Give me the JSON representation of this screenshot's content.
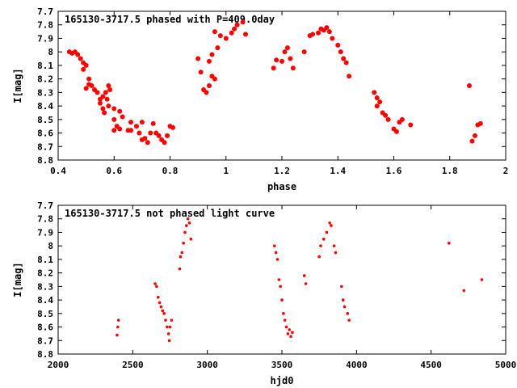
{
  "chart_data": [
    {
      "type": "scatter",
      "title": "165130-3717.5 phased with P=409.0day",
      "xlabel": "phase",
      "ylabel": "I[mag]",
      "xlim": [
        0.4,
        2.0
      ],
      "ylim": [
        7.7,
        8.8
      ],
      "y_inverted": true,
      "grid": false,
      "xticks": [
        "0.4",
        "0.6",
        "0.8",
        "1",
        "1.2",
        "1.4",
        "1.6",
        "1.8",
        "2"
      ],
      "yticks": [
        "7.7",
        "7.8",
        "7.9",
        "8",
        "8.1",
        "8.2",
        "8.3",
        "8.4",
        "8.5",
        "8.6",
        "8.7",
        "8.8"
      ],
      "marker_color": "#ff0000",
      "series": [
        {
          "points": [
            [
              0.44,
              8.0
            ],
            [
              0.45,
              8.01
            ],
            [
              0.46,
              8.0
            ],
            [
              0.47,
              8.02
            ],
            [
              0.48,
              8.05
            ],
            [
              0.49,
              8.08
            ],
            [
              0.5,
              8.1
            ],
            [
              0.49,
              8.13
            ],
            [
              0.51,
              8.2
            ],
            [
              0.52,
              8.25
            ],
            [
              0.5,
              8.27
            ],
            [
              0.53,
              8.28
            ],
            [
              0.51,
              8.24
            ],
            [
              0.54,
              8.3
            ],
            [
              0.55,
              8.35
            ],
            [
              0.56,
              8.33
            ],
            [
              0.57,
              8.3
            ],
            [
              0.58,
              8.25
            ],
            [
              0.585,
              8.28
            ],
            [
              0.575,
              8.35
            ],
            [
              0.55,
              8.38
            ],
            [
              0.56,
              8.42
            ],
            [
              0.565,
              8.45
            ],
            [
              0.58,
              8.4
            ],
            [
              0.6,
              8.42
            ],
            [
              0.62,
              8.44
            ],
            [
              0.63,
              8.48
            ],
            [
              0.6,
              8.5
            ],
            [
              0.61,
              8.55
            ],
            [
              0.62,
              8.57
            ],
            [
              0.65,
              8.58
            ],
            [
              0.66,
              8.52
            ],
            [
              0.68,
              8.55
            ],
            [
              0.7,
              8.52
            ],
            [
              0.69,
              8.6
            ],
            [
              0.7,
              8.65
            ],
            [
              0.72,
              8.67
            ],
            [
              0.71,
              8.64
            ],
            [
              0.73,
              8.6
            ],
            [
              0.74,
              8.53
            ],
            [
              0.75,
              8.6
            ],
            [
              0.76,
              8.62
            ],
            [
              0.77,
              8.65
            ],
            [
              0.78,
              8.67
            ],
            [
              0.79,
              8.62
            ],
            [
              0.8,
              8.55
            ],
            [
              0.81,
              8.56
            ],
            [
              0.6,
              8.58
            ],
            [
              0.66,
              8.58
            ],
            [
              0.9,
              8.05
            ],
            [
              0.91,
              8.15
            ],
            [
              0.92,
              8.28
            ],
            [
              0.93,
              8.3
            ],
            [
              0.94,
              8.25
            ],
            [
              0.95,
              8.18
            ],
            [
              0.96,
              8.2
            ],
            [
              0.94,
              8.07
            ],
            [
              0.95,
              8.02
            ],
            [
              0.97,
              7.97
            ],
            [
              0.96,
              7.85
            ],
            [
              0.98,
              7.88
            ],
            [
              1.0,
              7.9
            ],
            [
              1.02,
              7.86
            ],
            [
              1.03,
              7.83
            ],
            [
              1.04,
              7.8
            ],
            [
              1.06,
              7.78
            ],
            [
              1.07,
              7.87
            ],
            [
              1.17,
              8.12
            ],
            [
              1.18,
              8.06
            ],
            [
              1.2,
              8.07
            ],
            [
              1.21,
              8.0
            ],
            [
              1.22,
              7.97
            ],
            [
              1.23,
              8.05
            ],
            [
              1.24,
              8.12
            ],
            [
              1.28,
              8.0
            ],
            [
              1.3,
              7.88
            ],
            [
              1.31,
              7.87
            ],
            [
              1.33,
              7.86
            ],
            [
              1.34,
              7.83
            ],
            [
              1.35,
              7.84
            ],
            [
              1.36,
              7.82
            ],
            [
              1.37,
              7.85
            ],
            [
              1.38,
              7.9
            ],
            [
              1.4,
              7.95
            ],
            [
              1.41,
              8.0
            ],
            [
              1.42,
              8.05
            ],
            [
              1.43,
              8.08
            ],
            [
              1.44,
              8.18
            ],
            [
              1.53,
              8.3
            ],
            [
              1.54,
              8.34
            ],
            [
              1.55,
              8.37
            ],
            [
              1.54,
              8.4
            ],
            [
              1.56,
              8.45
            ],
            [
              1.57,
              8.47
            ],
            [
              1.58,
              8.5
            ],
            [
              1.6,
              8.57
            ],
            [
              1.61,
              8.59
            ],
            [
              1.62,
              8.52
            ],
            [
              1.63,
              8.5
            ],
            [
              1.66,
              8.54
            ],
            [
              1.87,
              8.25
            ],
            [
              1.88,
              8.66
            ],
            [
              1.89,
              8.62
            ],
            [
              1.9,
              8.54
            ],
            [
              1.91,
              8.53
            ]
          ]
        }
      ]
    },
    {
      "type": "scatter",
      "title": "165130-3717.5 not phased light curve",
      "xlabel": "hjd0",
      "ylabel": "I[mag]",
      "xlim": [
        2000,
        5000
      ],
      "ylim": [
        7.7,
        8.8
      ],
      "y_inverted": true,
      "grid": false,
      "xticks": [
        "2000",
        "2500",
        "3000",
        "3500",
        "4000",
        "4500",
        "5000"
      ],
      "yticks": [
        "7.7",
        "7.8",
        "7.9",
        "8",
        "8.1",
        "8.2",
        "8.3",
        "8.4",
        "8.5",
        "8.6",
        "8.7",
        "8.8"
      ],
      "marker_color": "#ff0000",
      "series": [
        {
          "points": [
            [
              2395,
              8.66
            ],
            [
              2400,
              8.6
            ],
            [
              2405,
              8.55
            ],
            [
              2650,
              8.28
            ],
            [
              2660,
              8.3
            ],
            [
              2670,
              8.38
            ],
            [
              2680,
              8.42
            ],
            [
              2690,
              8.45
            ],
            [
              2700,
              8.48
            ],
            [
              2710,
              8.5
            ],
            [
              2720,
              8.55
            ],
            [
              2730,
              8.6
            ],
            [
              2740,
              8.65
            ],
            [
              2745,
              8.7
            ],
            [
              2750,
              8.6
            ],
            [
              2760,
              8.55
            ],
            [
              2815,
              8.17
            ],
            [
              2820,
              8.08
            ],
            [
              2830,
              8.05
            ],
            [
              2840,
              7.98
            ],
            [
              2850,
              7.9
            ],
            [
              2860,
              7.85
            ],
            [
              2870,
              7.8
            ],
            [
              2880,
              7.83
            ],
            [
              2890,
              7.95
            ],
            [
              3450,
              8.0
            ],
            [
              3460,
              8.05
            ],
            [
              3470,
              8.1
            ],
            [
              3480,
              8.25
            ],
            [
              3490,
              8.3
            ],
            [
              3500,
              8.4
            ],
            [
              3510,
              8.5
            ],
            [
              3520,
              8.55
            ],
            [
              3530,
              8.6
            ],
            [
              3540,
              8.65
            ],
            [
              3550,
              8.62
            ],
            [
              3560,
              8.67
            ],
            [
              3570,
              8.64
            ],
            [
              3650,
              8.22
            ],
            [
              3660,
              8.28
            ],
            [
              3750,
              8.08
            ],
            [
              3760,
              8.0
            ],
            [
              3780,
              7.95
            ],
            [
              3800,
              7.9
            ],
            [
              3820,
              7.83
            ],
            [
              3830,
              7.85
            ],
            [
              3850,
              8.0
            ],
            [
              3860,
              8.05
            ],
            [
              3900,
              8.3
            ],
            [
              3910,
              8.4
            ],
            [
              3920,
              8.45
            ],
            [
              3940,
              8.5
            ],
            [
              3950,
              8.55
            ],
            [
              4620,
              7.98
            ],
            [
              4720,
              8.33
            ],
            [
              4840,
              8.25
            ]
          ]
        }
      ]
    }
  ]
}
